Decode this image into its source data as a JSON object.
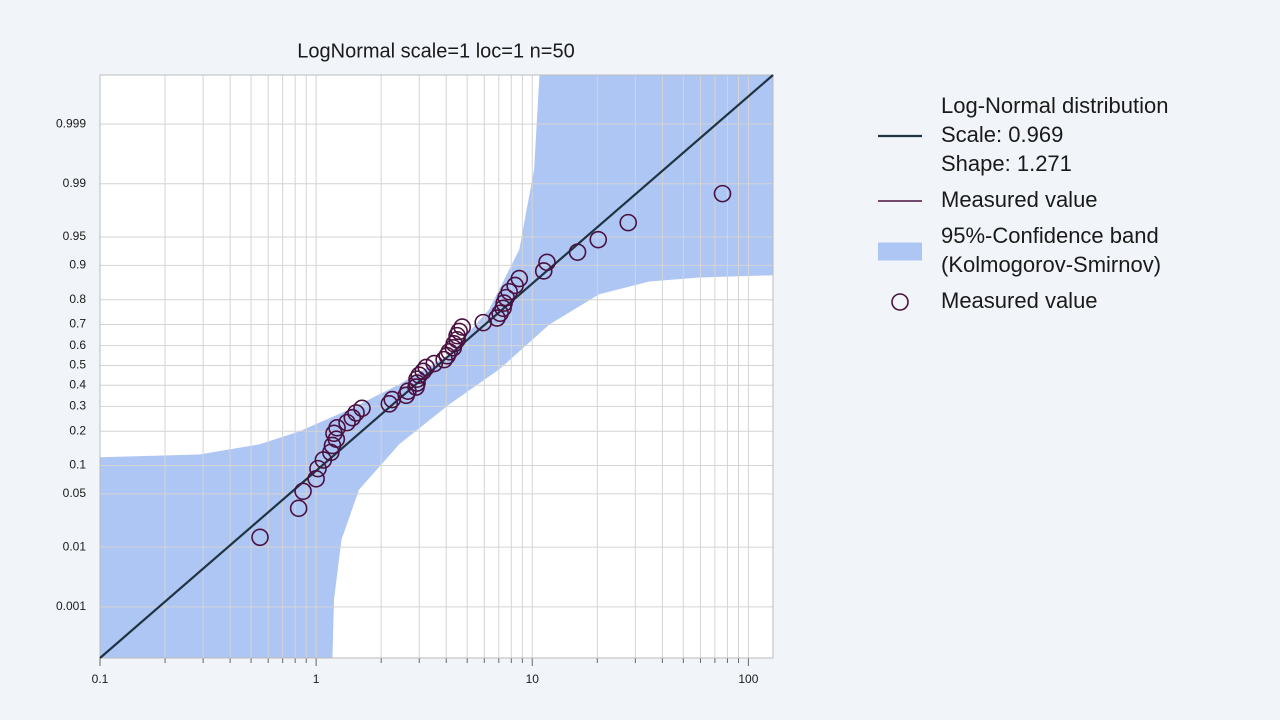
{
  "chart_data": {
    "type": "probability",
    "title": "LogNormal scale=1 loc=1 n=50",
    "xscale": "log",
    "yscale": "probit",
    "xlim": [
      0.1,
      130
    ],
    "ylim": [
      9e-05,
      0.9999
    ],
    "xticks": [
      0.1,
      1,
      10,
      100
    ],
    "xminorticks": [
      0.2,
      0.3,
      0.4,
      0.5,
      0.6,
      0.7,
      0.8,
      0.9,
      2,
      3,
      4,
      5,
      6,
      7,
      8,
      9,
      20,
      30,
      40,
      50,
      60,
      70,
      80,
      90
    ],
    "yticks": [
      0.001,
      0.01,
      0.05,
      0.1,
      0.2,
      0.3,
      0.4,
      0.5,
      0.6,
      0.7,
      0.8,
      0.9,
      0.95,
      0.99,
      0.999
    ],
    "grid": true,
    "series": [
      {
        "name": [
          "Log-Normal distribution",
          "Scale: 0.969",
          "Shape: 1.271"
        ],
        "mark": "line",
        "color": "#1f3340",
        "x": [
          0.1,
          130
        ],
        "values": [
          9e-05,
          0.9999
        ]
      },
      {
        "name": [
          "Measured value"
        ],
        "mark": "line",
        "color": "#4a1040"
      },
      {
        "name": [
          "95%-Confidence band",
          "(Kolmogorov-Smirnov)"
        ],
        "mark": "band",
        "color": "#adc6f4",
        "x_upper": [
          0.1,
          0.287,
          0.545,
          0.834,
          1.42,
          2.42,
          4.13,
          6.32,
          8.71,
          10.2,
          10.8
        ],
        "upper": [
          0.12,
          0.127,
          0.156,
          0.199,
          0.286,
          0.404,
          0.556,
          0.764,
          0.931,
          0.994,
          0.9999
        ],
        "x_lower": [
          1.19,
          1.21,
          1.31,
          1.58,
          2.42,
          4.13,
          7.03,
          12.0,
          20.4,
          34.8,
          59.3,
          130
        ],
        "lower": [
          9e-05,
          0.00135,
          0.0129,
          0.056,
          0.156,
          0.309,
          0.48,
          0.7,
          0.819,
          0.859,
          0.87,
          0.876
        ]
      },
      {
        "name": [
          "Measured value"
        ],
        "mark": "circle",
        "color": "#4a1040",
        "x": [
          0.55,
          0.83,
          0.87,
          1.0,
          1.02,
          1.08,
          1.17,
          1.19,
          1.24,
          1.21,
          1.25,
          1.39,
          1.47,
          1.53,
          1.63,
          2.18,
          2.25,
          2.61,
          2.66,
          2.9,
          2.93,
          2.93,
          3.0,
          3.13,
          3.23,
          3.52,
          3.91,
          4.04,
          4.13,
          4.31,
          4.35,
          4.49,
          4.49,
          4.59,
          4.74,
          5.93,
          6.87,
          7.1,
          7.33,
          7.41,
          7.57,
          7.82,
          8.33,
          8.71,
          11.3,
          11.7,
          16.2,
          20.2,
          27.8,
          75.9
        ],
        "values": [
          0.0139,
          0.0337,
          0.0536,
          0.0734,
          0.0933,
          0.1131,
          0.1329,
          0.1528,
          0.1726,
          0.1925,
          0.2123,
          0.2321,
          0.252,
          0.2718,
          0.2917,
          0.3115,
          0.3313,
          0.3512,
          0.371,
          0.3909,
          0.4107,
          0.4306,
          0.4504,
          0.4702,
          0.4901,
          0.5099,
          0.5298,
          0.5496,
          0.5694,
          0.5893,
          0.6091,
          0.629,
          0.6488,
          0.6687,
          0.6885,
          0.7083,
          0.7282,
          0.748,
          0.7679,
          0.7877,
          0.8075,
          0.8274,
          0.8472,
          0.8671,
          0.8869,
          0.9067,
          0.9266,
          0.9464,
          0.9663,
          0.9861
        ]
      }
    ]
  }
}
